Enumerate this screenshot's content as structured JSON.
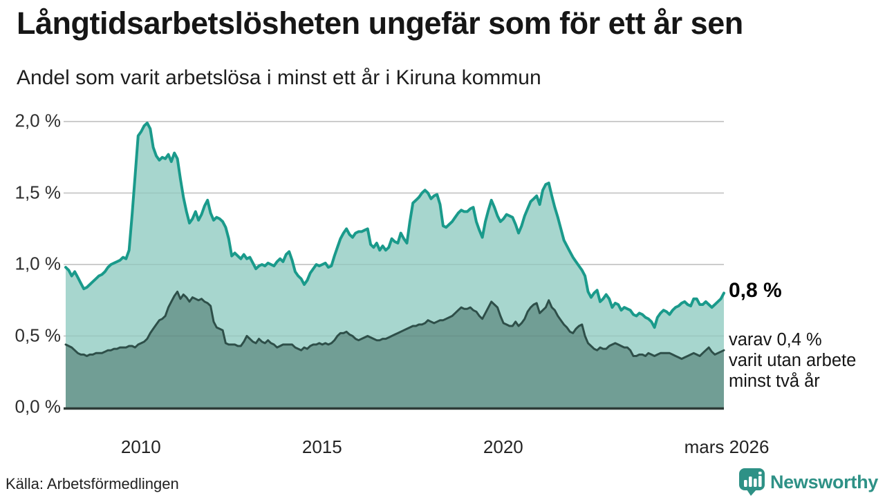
{
  "header": {
    "title": "Långtidsarbetslösheten ungefär som för ett år sen",
    "subtitle": "Andel som varit arbetslösa i minst ett år i Kiruna kommun"
  },
  "annotations": {
    "latest_total": "0,8 %",
    "secondary": [
      "varav 0,4 %",
      "varit utan arbete",
      "minst två år"
    ]
  },
  "footer": {
    "source": "Källa: Arbetsförmedlingen",
    "brand_name": "Newsworthy",
    "brand_color": "#2e9186"
  },
  "chart_data": {
    "type": "area",
    "title": "Långtidsarbetslösheten ungefär som för ett år sen",
    "subtitle": "Andel som varit arbetslösa i minst ett år i Kiruna kommun",
    "unit": "%",
    "grid": "horizontal",
    "legend_position": "none",
    "x_range": {
      "start": "2008-01",
      "end": "2026-03",
      "interval": "monthly"
    },
    "ylim": [
      0,
      2.0
    ],
    "y_ticks": [
      {
        "v": 0.0,
        "label": "0,0 %"
      },
      {
        "v": 0.5,
        "label": "0,5 %"
      },
      {
        "v": 1.0,
        "label": "1,0 %"
      },
      {
        "v": 1.5,
        "label": "1,5 %"
      },
      {
        "v": 2.0,
        "label": "2,0 %"
      }
    ],
    "x_ticks": [
      {
        "m": 24,
        "label": "2010"
      },
      {
        "m": 84,
        "label": "2015"
      },
      {
        "m": 144,
        "label": "2020"
      },
      {
        "m": 218,
        "label": "mars 2026"
      }
    ],
    "series": [
      {
        "id": "minst-ett-ar",
        "name": "Andel arbetslösa minst ett år",
        "latest_value": 0.8,
        "color": "#1a9a8b",
        "fill": "#a7d6ce",
        "values": [
          0.98,
          0.96,
          0.92,
          0.95,
          0.91,
          0.87,
          0.83,
          0.84,
          0.86,
          0.88,
          0.9,
          0.92,
          0.93,
          0.95,
          0.98,
          1.0,
          1.01,
          1.02,
          1.03,
          1.05,
          1.04,
          1.1,
          1.35,
          1.62,
          1.9,
          1.93,
          1.97,
          1.99,
          1.95,
          1.82,
          1.76,
          1.73,
          1.75,
          1.74,
          1.77,
          1.72,
          1.78,
          1.74,
          1.6,
          1.47,
          1.37,
          1.29,
          1.32,
          1.37,
          1.31,
          1.35,
          1.41,
          1.45,
          1.36,
          1.31,
          1.33,
          1.32,
          1.3,
          1.26,
          1.18,
          1.06,
          1.08,
          1.06,
          1.04,
          1.07,
          1.04,
          1.05,
          1.01,
          0.97,
          0.99,
          1.0,
          0.99,
          1.01,
          1.0,
          0.99,
          1.02,
          1.04,
          1.02,
          1.07,
          1.09,
          1.03,
          0.95,
          0.92,
          0.9,
          0.86,
          0.89,
          0.94,
          0.97,
          1.0,
          0.99,
          1.0,
          1.01,
          0.98,
          0.99,
          1.06,
          1.12,
          1.18,
          1.22,
          1.25,
          1.21,
          1.19,
          1.22,
          1.23,
          1.23,
          1.24,
          1.25,
          1.14,
          1.12,
          1.15,
          1.1,
          1.13,
          1.1,
          1.12,
          1.18,
          1.16,
          1.15,
          1.22,
          1.18,
          1.15,
          1.3,
          1.43,
          1.45,
          1.47,
          1.5,
          1.52,
          1.5,
          1.46,
          1.48,
          1.49,
          1.42,
          1.27,
          1.26,
          1.28,
          1.3,
          1.33,
          1.36,
          1.38,
          1.37,
          1.37,
          1.39,
          1.4,
          1.3,
          1.24,
          1.19,
          1.3,
          1.38,
          1.45,
          1.4,
          1.34,
          1.3,
          1.32,
          1.35,
          1.34,
          1.33,
          1.28,
          1.22,
          1.27,
          1.34,
          1.39,
          1.44,
          1.46,
          1.48,
          1.42,
          1.52,
          1.56,
          1.57,
          1.48,
          1.4,
          1.33,
          1.25,
          1.17,
          1.13,
          1.09,
          1.05,
          1.02,
          0.99,
          0.96,
          0.92,
          0.81,
          0.77,
          0.8,
          0.82,
          0.74,
          0.76,
          0.79,
          0.76,
          0.7,
          0.73,
          0.72,
          0.68,
          0.7,
          0.69,
          0.68,
          0.65,
          0.64,
          0.66,
          0.65,
          0.63,
          0.62,
          0.6,
          0.56,
          0.63,
          0.66,
          0.68,
          0.67,
          0.65,
          0.68,
          0.7,
          0.71,
          0.73,
          0.74,
          0.72,
          0.71,
          0.76,
          0.76,
          0.72,
          0.72,
          0.74,
          0.72,
          0.7,
          0.72,
          0.74,
          0.76,
          0.8
        ]
      },
      {
        "id": "minst-tva-ar",
        "name": "varav utan arbete minst två år",
        "latest_value": 0.4,
        "color": "#2e4f49",
        "fill": "#719e95",
        "values": [
          0.44,
          0.43,
          0.42,
          0.4,
          0.38,
          0.37,
          0.37,
          0.36,
          0.37,
          0.37,
          0.38,
          0.38,
          0.38,
          0.39,
          0.4,
          0.4,
          0.41,
          0.41,
          0.42,
          0.42,
          0.42,
          0.43,
          0.43,
          0.42,
          0.44,
          0.45,
          0.46,
          0.48,
          0.52,
          0.55,
          0.58,
          0.61,
          0.62,
          0.64,
          0.7,
          0.74,
          0.78,
          0.81,
          0.76,
          0.79,
          0.77,
          0.74,
          0.77,
          0.76,
          0.75,
          0.76,
          0.74,
          0.73,
          0.71,
          0.6,
          0.56,
          0.55,
          0.54,
          0.45,
          0.44,
          0.44,
          0.44,
          0.43,
          0.43,
          0.46,
          0.5,
          0.48,
          0.46,
          0.45,
          0.48,
          0.46,
          0.45,
          0.47,
          0.45,
          0.44,
          0.42,
          0.43,
          0.44,
          0.44,
          0.44,
          0.44,
          0.42,
          0.41,
          0.4,
          0.42,
          0.41,
          0.43,
          0.44,
          0.44,
          0.45,
          0.44,
          0.45,
          0.44,
          0.45,
          0.47,
          0.5,
          0.52,
          0.52,
          0.53,
          0.51,
          0.5,
          0.48,
          0.47,
          0.48,
          0.49,
          0.5,
          0.49,
          0.48,
          0.47,
          0.47,
          0.48,
          0.48,
          0.49,
          0.5,
          0.51,
          0.52,
          0.53,
          0.54,
          0.55,
          0.56,
          0.57,
          0.57,
          0.58,
          0.58,
          0.59,
          0.61,
          0.6,
          0.59,
          0.6,
          0.61,
          0.61,
          0.62,
          0.63,
          0.64,
          0.66,
          0.68,
          0.7,
          0.69,
          0.69,
          0.7,
          0.68,
          0.67,
          0.64,
          0.62,
          0.66,
          0.7,
          0.74,
          0.72,
          0.7,
          0.64,
          0.59,
          0.58,
          0.57,
          0.57,
          0.6,
          0.57,
          0.59,
          0.62,
          0.67,
          0.7,
          0.72,
          0.73,
          0.66,
          0.68,
          0.7,
          0.75,
          0.7,
          0.68,
          0.64,
          0.61,
          0.58,
          0.56,
          0.53,
          0.52,
          0.55,
          0.57,
          0.58,
          0.5,
          0.45,
          0.43,
          0.41,
          0.4,
          0.42,
          0.41,
          0.41,
          0.43,
          0.44,
          0.45,
          0.44,
          0.43,
          0.42,
          0.42,
          0.4,
          0.36,
          0.36,
          0.37,
          0.37,
          0.36,
          0.38,
          0.37,
          0.36,
          0.37,
          0.38,
          0.38,
          0.38,
          0.38,
          0.37,
          0.36,
          0.35,
          0.34,
          0.35,
          0.36,
          0.37,
          0.38,
          0.37,
          0.36,
          0.38,
          0.4,
          0.42,
          0.39,
          0.37,
          0.38,
          0.39,
          0.4
        ]
      }
    ]
  }
}
